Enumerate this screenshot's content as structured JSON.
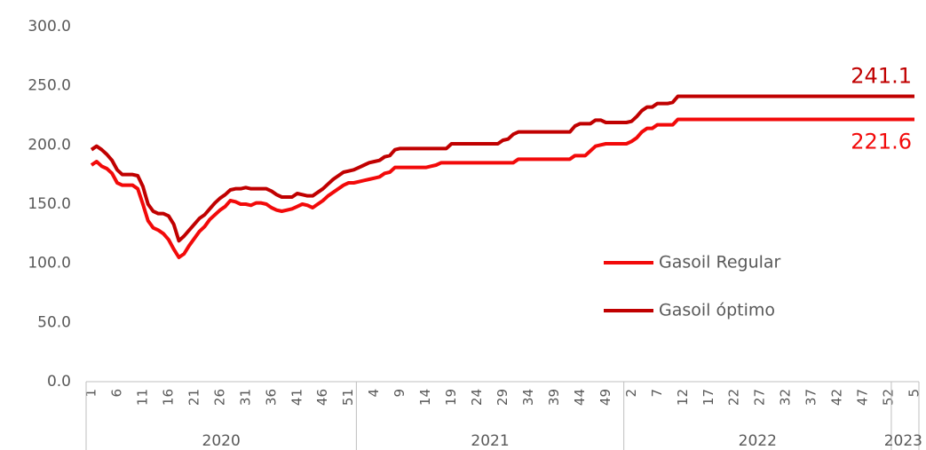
{
  "chart_data": {
    "type": "line",
    "categories": [
      "1",
      null,
      null,
      null,
      null,
      "6",
      null,
      null,
      null,
      null,
      "11",
      null,
      null,
      null,
      null,
      "16",
      null,
      null,
      null,
      null,
      "21",
      null,
      null,
      null,
      null,
      "26",
      null,
      null,
      null,
      null,
      "31",
      null,
      null,
      null,
      null,
      "36",
      null,
      null,
      null,
      null,
      "41",
      null,
      null,
      null,
      null,
      "46",
      null,
      null,
      null,
      null,
      "51",
      null,
      null,
      null,
      null,
      "4",
      null,
      null,
      null,
      null,
      "9",
      null,
      null,
      null,
      null,
      "14",
      null,
      null,
      null,
      null,
      "19",
      null,
      null,
      null,
      null,
      "24",
      null,
      null,
      null,
      null,
      "29",
      null,
      null,
      null,
      null,
      "34",
      null,
      null,
      null,
      null,
      "39",
      null,
      null,
      null,
      null,
      "44",
      null,
      null,
      null,
      null,
      "49",
      null,
      null,
      null,
      null,
      "2",
      null,
      null,
      null,
      null,
      "7",
      null,
      null,
      null,
      null,
      "12",
      null,
      null,
      null,
      null,
      "17",
      null,
      null,
      null,
      null,
      "22",
      null,
      null,
      null,
      null,
      "27",
      null,
      null,
      null,
      null,
      "32",
      null,
      null,
      null,
      null,
      "37",
      null,
      null,
      null,
      null,
      "42",
      null,
      null,
      null,
      null,
      "47",
      null,
      null,
      null,
      null,
      "52",
      null,
      null,
      null,
      null,
      "5"
    ],
    "groups": [
      {
        "label": "2020",
        "count": 52
      },
      {
        "label": "2021",
        "count": 52
      },
      {
        "label": "2022",
        "count": 52
      },
      {
        "label": "2023",
        "count": 5
      }
    ],
    "series": [
      {
        "name": "Gasoil Regular",
        "color": "#f20a0a",
        "values": [
          183,
          186,
          182,
          180,
          176,
          168,
          166,
          166,
          166,
          163,
          150,
          136,
          130,
          128,
          125,
          120,
          112,
          105,
          108,
          115,
          121,
          127,
          131,
          137,
          141,
          145,
          148,
          153,
          152,
          150,
          150,
          149,
          151,
          151,
          150,
          147,
          145,
          144,
          145,
          146,
          148,
          150,
          149,
          147,
          150,
          153,
          157,
          160,
          163,
          166,
          168,
          168,
          169,
          170,
          171,
          172,
          173,
          176,
          177,
          181,
          181,
          181,
          181,
          181,
          181,
          181,
          182,
          183,
          185,
          185,
          185,
          185,
          185,
          185,
          185,
          185,
          185,
          185,
          185,
          185,
          185,
          185,
          185,
          188,
          188,
          188,
          188,
          188,
          188,
          188,
          188,
          188,
          188,
          188,
          191,
          191,
          191,
          195,
          199,
          200,
          201,
          201,
          201,
          201,
          201,
          203,
          206,
          211,
          214,
          214,
          217,
          217,
          217,
          217,
          221.6,
          221.6,
          221.6,
          221.6,
          221.6,
          221.6,
          221.6,
          221.6,
          221.6,
          221.6,
          221.6,
          221.6,
          221.6,
          221.6,
          221.6,
          221.6,
          221.6,
          221.6,
          221.6,
          221.6,
          221.6,
          221.6,
          221.6,
          221.6,
          221.6,
          221.6,
          221.6,
          221.6,
          221.6,
          221.6,
          221.6,
          221.6,
          221.6,
          221.6,
          221.6,
          221.6,
          221.6,
          221.6,
          221.6,
          221.6,
          221.6,
          221.6,
          221.6,
          221.6,
          221.6,
          221.6,
          221.6
        ]
      },
      {
        "name": "Gasoil óptimo",
        "color": "#c00000",
        "values": [
          196,
          199,
          196,
          192,
          187,
          179,
          175,
          175,
          175,
          174,
          165,
          150,
          144,
          142,
          142,
          140,
          133,
          119,
          123,
          128,
          133,
          138,
          141,
          146,
          151,
          155,
          158,
          162,
          163,
          163,
          164,
          163,
          163,
          163,
          163,
          161,
          158,
          156,
          156,
          156,
          159,
          158,
          157,
          157,
          160,
          163,
          167,
          171,
          174,
          177,
          178,
          179,
          181,
          183,
          185,
          186,
          187,
          190,
          191,
          196,
          197,
          197,
          197,
          197,
          197,
          197,
          197,
          197,
          197,
          197,
          201,
          201,
          201,
          201,
          201,
          201,
          201,
          201,
          201,
          201,
          204,
          205,
          209,
          211,
          211,
          211,
          211,
          211,
          211,
          211,
          211,
          211,
          211,
          211,
          216,
          218,
          218,
          218,
          221,
          221,
          219,
          219,
          219,
          219,
          219,
          220,
          224,
          229,
          232,
          232,
          235,
          235,
          235,
          236,
          241.1,
          241.1,
          241.1,
          241.1,
          241.1,
          241.1,
          241.1,
          241.1,
          241.1,
          241.1,
          241.1,
          241.1,
          241.1,
          241.1,
          241.1,
          241.1,
          241.1,
          241.1,
          241.1,
          241.1,
          241.1,
          241.1,
          241.1,
          241.1,
          241.1,
          241.1,
          241.1,
          241.1,
          241.1,
          241.1,
          241.1,
          241.1,
          241.1,
          241.1,
          241.1,
          241.1,
          241.1,
          241.1,
          241.1,
          241.1,
          241.1,
          241.1,
          241.1,
          241.1,
          241.1,
          241.1,
          241.1
        ]
      }
    ],
    "ylim": [
      0,
      300
    ],
    "yticks": [
      {
        "value": 0,
        "label": "0.0"
      },
      {
        "value": 50,
        "label": "50.0"
      },
      {
        "value": 100,
        "label": "100.0"
      },
      {
        "value": 150,
        "label": "150.0"
      },
      {
        "value": 200,
        "label": "200.0"
      },
      {
        "value": 250,
        "label": "250.0"
      },
      {
        "value": 300,
        "label": "300.0"
      }
    ],
    "grid": false
  }
}
